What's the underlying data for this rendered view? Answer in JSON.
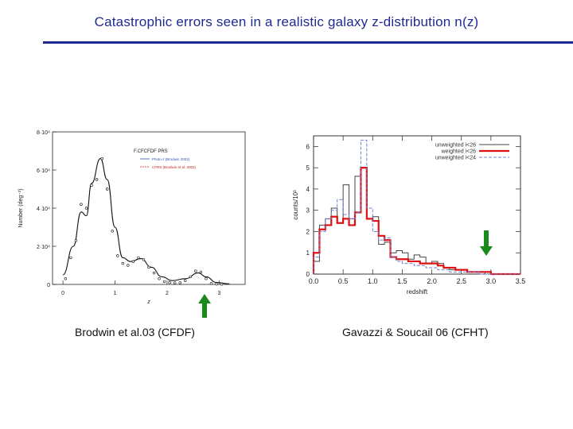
{
  "slide": {
    "title": "Catastrophic errors seen in a realistic galaxy z-distribution n(z)",
    "left_caption": "Brodwin et al.03  (CFDF)",
    "right_caption": "Gavazzi & Soucail 06 (CFHT)",
    "accent_color": "#1f2a8f",
    "arrow_color": "#1a8a1a"
  },
  "chart_data": [
    {
      "type": "line",
      "xlabel": "z",
      "ylabel": "Number (deg⁻²)",
      "ytick_labels": [
        "0",
        "2·10⁴",
        "4·10⁴",
        "6·10⁴",
        "8·10⁴"
      ],
      "xtick_labels": [
        "0",
        "1",
        "2",
        "3"
      ],
      "xlim": [
        -0.2,
        3.5
      ],
      "ylim": [
        0,
        80000
      ],
      "legend": {
        "title": "F.CFCFDF PRS",
        "entries": [
          "Photo-z (Brodwin 2003)",
          "CFRS (Brodwin et al. 2003)"
        ],
        "position": "top-right"
      },
      "points_x": [
        0.05,
        0.15,
        0.25,
        0.35,
        0.45,
        0.55,
        0.65,
        0.75,
        0.85,
        0.95,
        1.05,
        1.15,
        1.25,
        1.35,
        1.45,
        1.55,
        1.65,
        1.75,
        1.85,
        1.95,
        2.05,
        2.15,
        2.25,
        2.35,
        2.45,
        2.55,
        2.65,
        2.75,
        2.85,
        2.95,
        3.05
      ],
      "points_y": [
        3000,
        14000,
        23000,
        42000,
        40000,
        52000,
        55000,
        66000,
        50000,
        28000,
        15000,
        11000,
        10000,
        12000,
        14000,
        13000,
        9000,
        6000,
        3000,
        1500,
        1000,
        800,
        900,
        2000,
        4000,
        7000,
        6500,
        3000,
        500,
        200,
        100
      ],
      "smooth_curve": [
        {
          "x": 0.0,
          "y": 5000
        },
        {
          "x": 0.2,
          "y": 20000
        },
        {
          "x": 0.35,
          "y": 38000
        },
        {
          "x": 0.45,
          "y": 36000
        },
        {
          "x": 0.55,
          "y": 53000
        },
        {
          "x": 0.72,
          "y": 66000
        },
        {
          "x": 0.85,
          "y": 55000
        },
        {
          "x": 1.0,
          "y": 30000
        },
        {
          "x": 1.15,
          "y": 14000
        },
        {
          "x": 1.3,
          "y": 12000
        },
        {
          "x": 1.5,
          "y": 13500
        },
        {
          "x": 1.7,
          "y": 9000
        },
        {
          "x": 1.9,
          "y": 4000
        },
        {
          "x": 2.1,
          "y": 2000
        },
        {
          "x": 2.35,
          "y": 3000
        },
        {
          "x": 2.6,
          "y": 6000
        },
        {
          "x": 2.75,
          "y": 4000
        },
        {
          "x": 2.95,
          "y": 1000
        },
        {
          "x": 3.2,
          "y": 300
        }
      ],
      "highlight_z": 2.7
    },
    {
      "type": "line",
      "xlabel": "redshift",
      "ylabel": "counts/10³",
      "xlim": [
        0.0,
        3.5
      ],
      "ylim": [
        0,
        6.5
      ],
      "yticks": [
        0,
        1,
        2,
        3,
        4,
        5,
        6
      ],
      "xticks": [
        0.0,
        0.5,
        1.0,
        1.5,
        2.0,
        2.5,
        3.0,
        3.5
      ],
      "xtick_labels": [
        "0.0",
        "0.5",
        "1.0",
        "1.5",
        "2.0",
        "2.5",
        "3.0",
        "3.5"
      ],
      "ytick_labels": [
        "0",
        "1",
        "2",
        "3",
        "4",
        "5",
        "6"
      ],
      "legend_position": "top-right",
      "bin_width": 0.1,
      "series": [
        {
          "name": "unweighted i<26",
          "color": "#444444",
          "dash": "solid",
          "width": 1,
          "values": [
            0.6,
            2.3,
            2.6,
            3.1,
            2.4,
            4.2,
            2.6,
            4.6,
            5.0,
            2.6,
            2.7,
            1.4,
            1.5,
            1.0,
            1.1,
            1.0,
            0.7,
            0.9,
            0.8,
            0.5,
            0.6,
            0.5,
            0.3,
            0.2,
            0.2,
            0.2,
            0.1,
            0.1,
            0.1,
            0.0,
            0.0,
            0.0,
            0.0,
            0.0,
            0.0
          ]
        },
        {
          "name": "weighted i<26",
          "color": "#dd1111",
          "dash": "solid",
          "width": 2.2,
          "values": [
            1.0,
            2.1,
            2.3,
            2.7,
            2.4,
            2.6,
            2.3,
            2.9,
            5.0,
            2.6,
            2.5,
            1.8,
            1.6,
            0.8,
            0.7,
            0.7,
            0.6,
            0.6,
            0.5,
            0.5,
            0.5,
            0.4,
            0.3,
            0.3,
            0.2,
            0.2,
            0.1,
            0.1,
            0.1,
            0.1,
            0.0,
            0.0,
            0.0,
            0.0,
            0.0
          ]
        },
        {
          "name": "unweighted i<24",
          "color": "#6f7fd8",
          "dash": "dashed",
          "width": 1,
          "values": [
            0.8,
            2.0,
            2.6,
            3.0,
            3.5,
            2.8,
            2.6,
            2.9,
            6.3,
            3.1,
            2.0,
            1.6,
            1.7,
            0.8,
            0.6,
            0.5,
            0.5,
            0.4,
            0.4,
            0.3,
            0.3,
            0.2,
            0.2,
            0.1,
            0.1,
            0.1,
            0.1,
            0.1,
            0.0,
            0.0,
            0.0,
            0.0,
            0.0,
            0.0,
            0.0
          ]
        }
      ],
      "highlight_z": 2.95
    }
  ]
}
